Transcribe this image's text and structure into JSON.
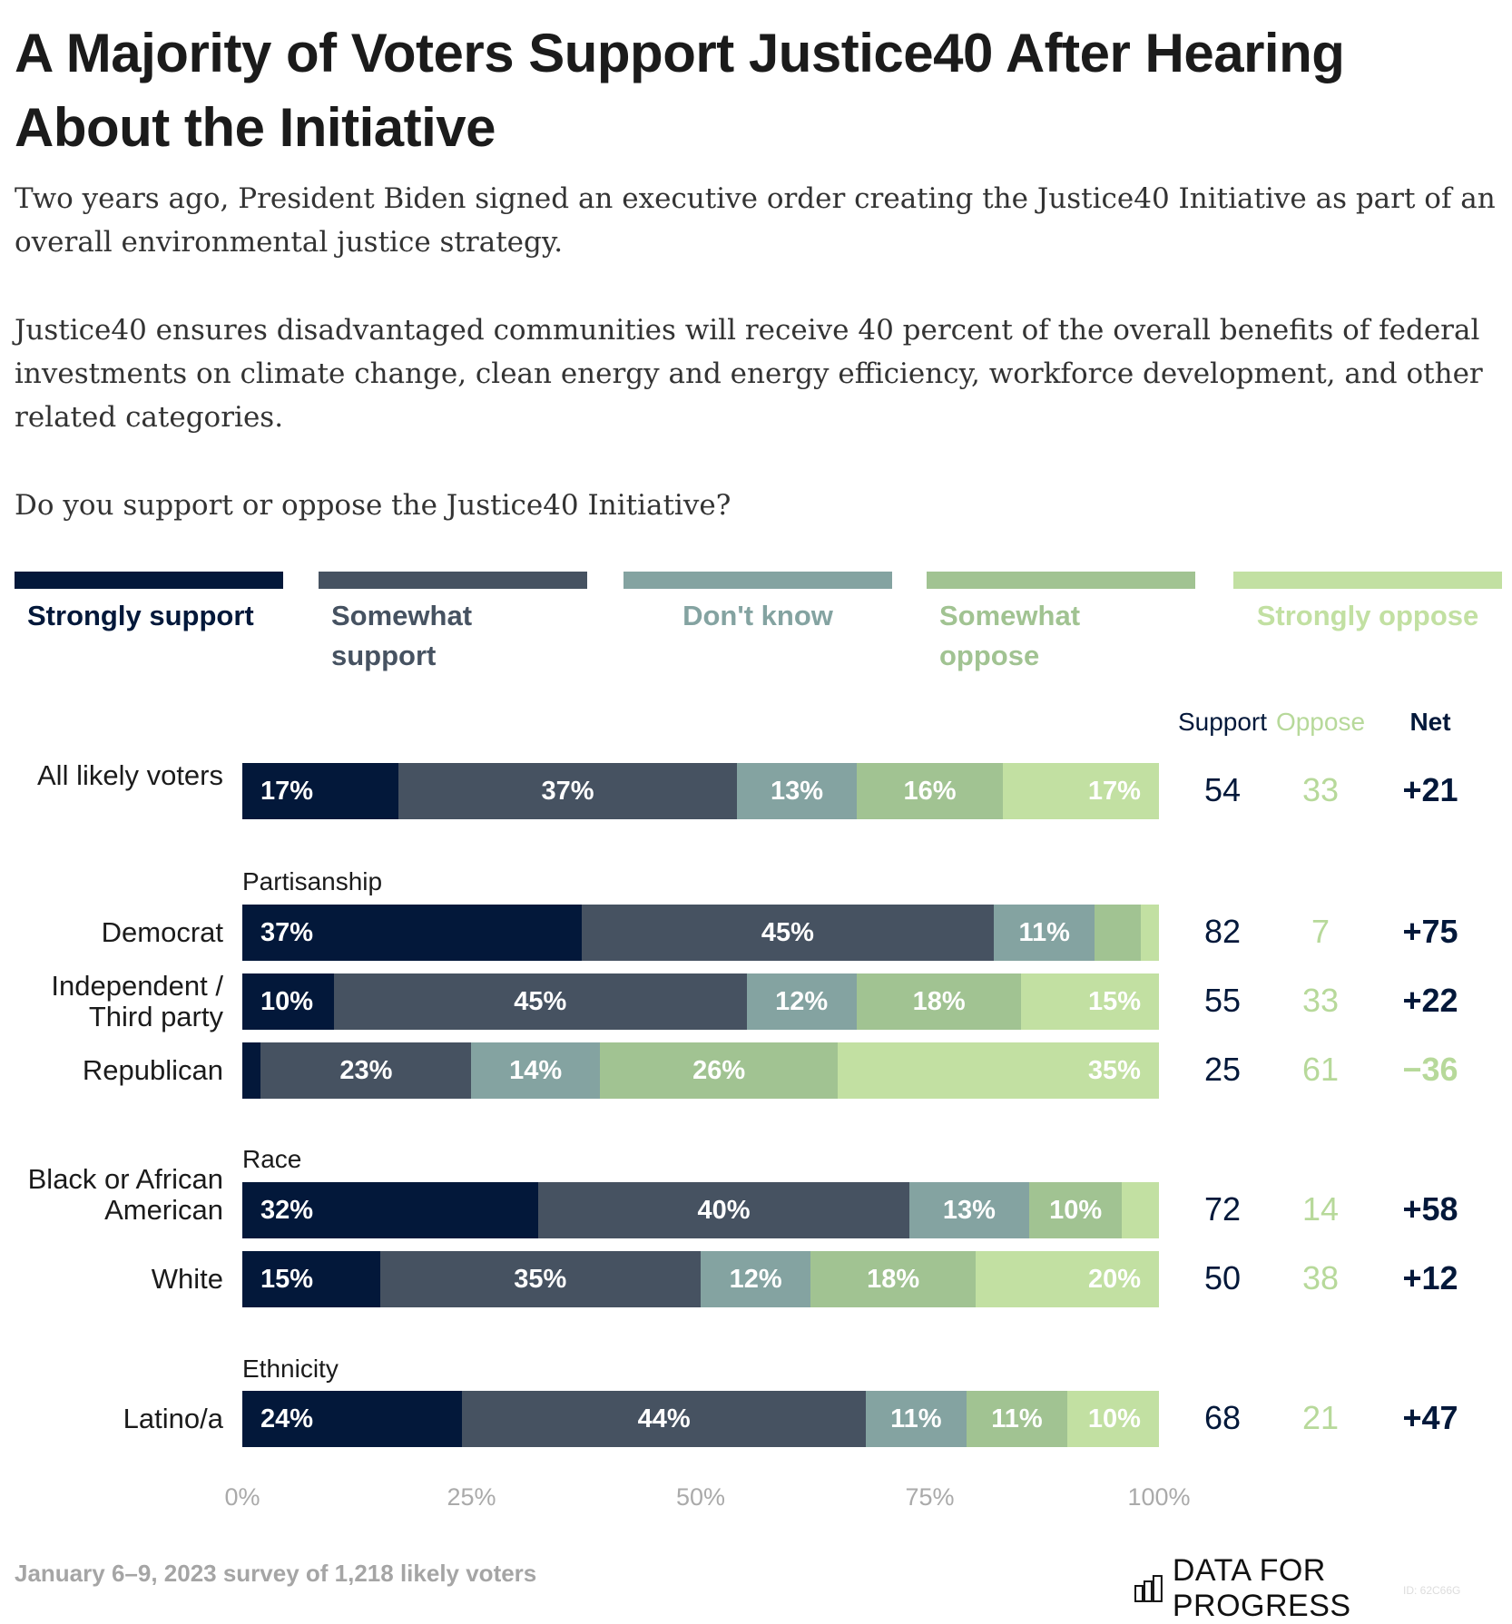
{
  "title": "A Majority of Voters Support Justice40 After Hearing About the Initiative",
  "paragraphs": [
    "Two years ago, President Biden signed an executive order creating the Justice40 Initiative as part of an overall environmental justice strategy.",
    "Justice40 ensures disadvantaged communities will receive 40 percent of the overall benefits of federal investments on climate change, clean energy and energy efficiency, workforce development, and other related categories.",
    "Do you support or oppose the Justice40 Initiative?"
  ],
  "footer": {
    "source": "January 6–9, 2023 survey of 1,218 likely voters",
    "logo": "DATA FOR PROGRESS",
    "id": "ID: 62C66G"
  },
  "chart_data": {
    "type": "bar",
    "orientation": "horizontal-stacked-100",
    "series": [
      {
        "name": "Strongly support",
        "color": "#03183a"
      },
      {
        "name": "Somewhat support",
        "color": "#465261"
      },
      {
        "name": "Don't know",
        "color": "#84a3a1"
      },
      {
        "name": "Somewhat oppose",
        "color": "#a1c392"
      },
      {
        "name": "Strongly oppose",
        "color": "#c2e0a2"
      }
    ],
    "columns": {
      "support": "Support",
      "oppose": "Oppose",
      "net": "Net"
    },
    "groups": [
      {
        "label": "",
        "rows": [
          {
            "label": "All likely voters",
            "values": [
              17,
              37,
              13,
              16,
              17
            ],
            "labels": [
              "17%",
              "37%",
              "13%",
              "16%",
              "17%"
            ],
            "support": "54",
            "oppose": "33",
            "net": "+21"
          }
        ]
      },
      {
        "label": "Partisanship",
        "rows": [
          {
            "label": "Democrat",
            "values": [
              37,
              45,
              11,
              5,
              2
            ],
            "labels": [
              "37%",
              "45%",
              "11%",
              "",
              ""
            ],
            "support": "82",
            "oppose": "7",
            "net": "+75"
          },
          {
            "label": "Independent / Third party",
            "values": [
              10,
              45,
              12,
              18,
              15
            ],
            "labels": [
              "10%",
              "45%",
              "12%",
              "18%",
              "15%"
            ],
            "support": "55",
            "oppose": "33",
            "net": "+22"
          },
          {
            "label": "Republican",
            "values": [
              2,
              23,
              14,
              26,
              35
            ],
            "labels": [
              "",
              "23%",
              "14%",
              "26%",
              "35%"
            ],
            "support": "25",
            "oppose": "61",
            "net": "−36"
          }
        ]
      },
      {
        "label": "Race",
        "rows": [
          {
            "label": "Black or African American",
            "values": [
              32,
              40,
              13,
              10,
              4
            ],
            "labels": [
              "32%",
              "40%",
              "13%",
              "10%",
              ""
            ],
            "support": "72",
            "oppose": "14",
            "net": "+58"
          },
          {
            "label": "White",
            "values": [
              15,
              35,
              12,
              18,
              20
            ],
            "labels": [
              "15%",
              "35%",
              "12%",
              "18%",
              "20%"
            ],
            "support": "50",
            "oppose": "38",
            "net": "+12"
          }
        ]
      },
      {
        "label": "Ethnicity",
        "rows": [
          {
            "label": "Latino/a",
            "values": [
              24,
              44,
              11,
              11,
              10
            ],
            "labels": [
              "24%",
              "44%",
              "11%",
              "11%",
              "10%"
            ],
            "support": "68",
            "oppose": "21",
            "net": "+47"
          }
        ]
      }
    ],
    "xticks": [
      "0%",
      "25%",
      "50%",
      "75%",
      "100%"
    ],
    "xlim": [
      0,
      100
    ],
    "grid": false,
    "legend_placement": "top"
  }
}
